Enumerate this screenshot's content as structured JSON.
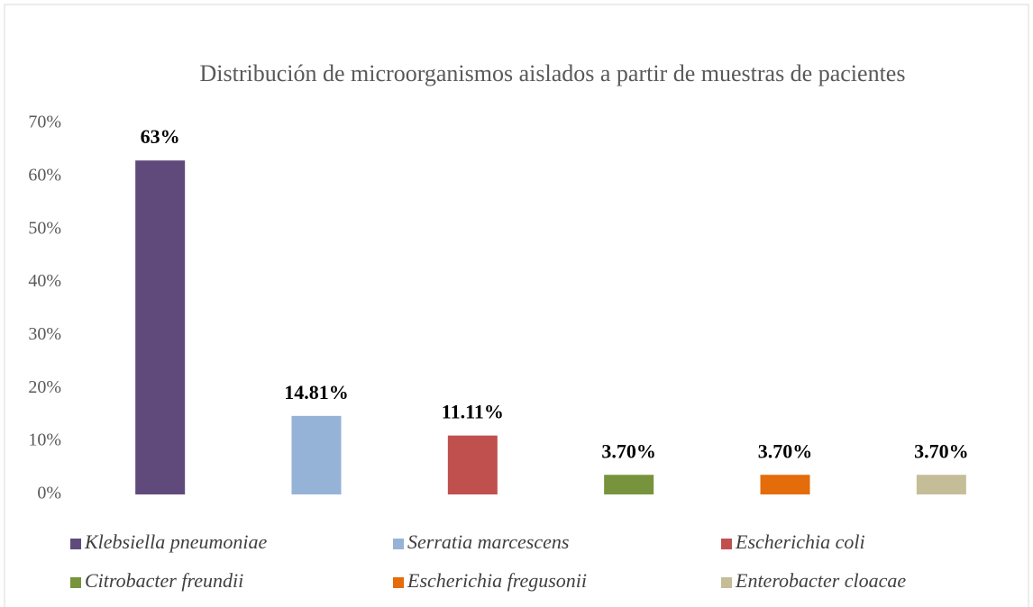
{
  "chart_data": {
    "type": "bar",
    "title": "Distribución de microorganismos aislados a partir de muestras de pacientes",
    "categories": [
      "Klebsiella pneumoniae",
      "Serratia marcescens",
      "Escherichia coli",
      "Citrobacter freundii",
      "Escherichia fregusonii",
      "Enterobacter cloacae"
    ],
    "values": [
      63,
      14.81,
      11.11,
      3.7,
      3.7,
      3.7
    ],
    "value_labels": [
      "63%",
      "14.81%",
      "11.11%",
      "3.70%",
      "3.70%",
      "3.70%"
    ],
    "colors": [
      "#604a7b",
      "#95b3d7",
      "#c0504d",
      "#77933c",
      "#e46c0a",
      "#c4bd97"
    ],
    "ylim": [
      0,
      70
    ],
    "yticks": [
      {
        "value": 0,
        "label": "0%"
      },
      {
        "value": 10,
        "label": "10%"
      },
      {
        "value": 20,
        "label": "20%"
      },
      {
        "value": 30,
        "label": "30%"
      },
      {
        "value": 40,
        "label": "40%"
      },
      {
        "value": 50,
        "label": "50%"
      },
      {
        "value": 60,
        "label": "60%"
      },
      {
        "value": 70,
        "label": "70%"
      }
    ],
    "grid": false,
    "legend": "bottom"
  }
}
